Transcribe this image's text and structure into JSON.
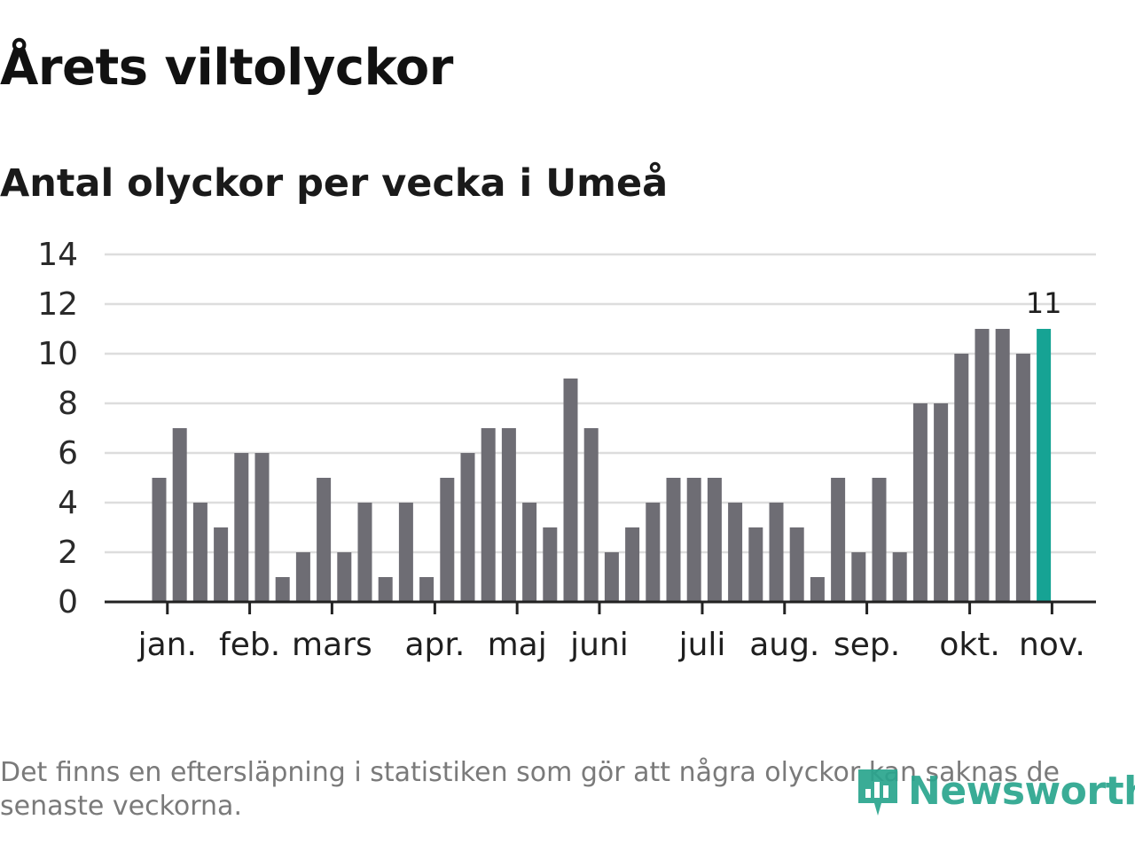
{
  "title": "Årets viltolyckor",
  "subtitle": "Antal olyckor per vecka i Umeå",
  "footnote": "Det finns en eftersläpning i statistiken som gör att några olyckor kan saknas de senaste veckorna.",
  "logo": {
    "text": "Newsworthy",
    "icon": "bar-chart-icon"
  },
  "colors": {
    "bar": "#6e6d74",
    "highlight": "#16a394",
    "grid": "#dddddd",
    "axis": "#222222"
  },
  "chart_data": {
    "type": "bar",
    "title": "Årets viltolyckor",
    "subtitle": "Antal olyckor per vecka i Umeå",
    "xlabel": "",
    "ylabel": "",
    "ylim": [
      0,
      14
    ],
    "yticks": [
      0,
      2,
      4,
      6,
      8,
      10,
      12,
      14
    ],
    "grid": true,
    "values": [
      5,
      7,
      4,
      3,
      6,
      6,
      1,
      2,
      5,
      2,
      4,
      1,
      4,
      1,
      5,
      6,
      7,
      7,
      4,
      3,
      9,
      7,
      2,
      3,
      4,
      5,
      5,
      5,
      4,
      3,
      4,
      3,
      1,
      5,
      2,
      5,
      2,
      8,
      8,
      10,
      11,
      11,
      10,
      11
    ],
    "highlight_index": 43,
    "highlight_label": "11",
    "month_labels": [
      {
        "label": "jan.",
        "week_index": 0.4
      },
      {
        "label": "feb.",
        "week_index": 4.4
      },
      {
        "label": "mars",
        "week_index": 8.4
      },
      {
        "label": "apr.",
        "week_index": 13.4
      },
      {
        "label": "maj",
        "week_index": 17.4
      },
      {
        "label": "juni",
        "week_index": 21.4
      },
      {
        "label": "juli",
        "week_index": 26.4
      },
      {
        "label": "aug.",
        "week_index": 30.4
      },
      {
        "label": "sep.",
        "week_index": 34.4
      },
      {
        "label": "okt.",
        "week_index": 39.4
      },
      {
        "label": "nov.",
        "week_index": 43.4
      }
    ]
  }
}
